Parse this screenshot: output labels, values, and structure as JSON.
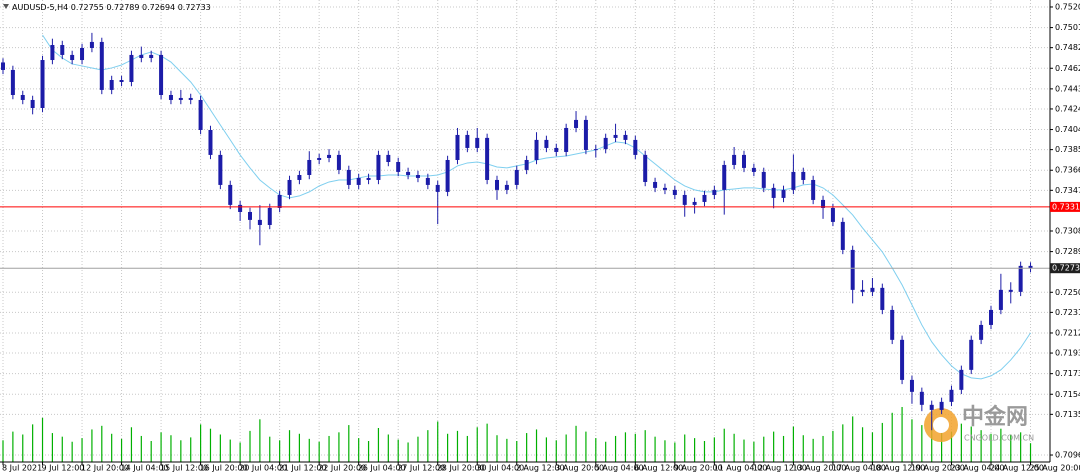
{
  "chart_data": {
    "type": "candlestick",
    "symbol": "AUDUSD-5,H4",
    "categories": [
      "8 Jul 2021",
      null,
      null,
      null,
      "9 Jul 12:00",
      null,
      null,
      null,
      "12 Jul 20:00",
      null,
      null,
      null,
      "14 Jul 04:00",
      null,
      null,
      null,
      "15 Jul 12:00",
      null,
      null,
      null,
      "16 Jul 20:00",
      null,
      null,
      null,
      "20 Jul 04:00",
      null,
      null,
      null,
      "21 Jul 12:00",
      null,
      null,
      null,
      "22 Jul 20:00",
      null,
      null,
      null,
      "26 Jul 04:00",
      null,
      null,
      null,
      "27 Jul 12:00",
      null,
      null,
      null,
      "28 Jul 20:00",
      null,
      null,
      null,
      "30 Jul 04:00",
      null,
      null,
      null,
      "2 Aug 12:00",
      null,
      null,
      null,
      "3 Aug 20:00",
      null,
      null,
      null,
      "5 Aug 04:00",
      null,
      null,
      null,
      "6 Aug 12:00",
      null,
      null,
      null,
      "9 Aug 20:00",
      null,
      null,
      null,
      "11 Aug 04:00",
      null,
      null,
      null,
      "12 Aug 12:00",
      null,
      null,
      null,
      "13 Aug 20:00",
      null,
      null,
      null,
      "17 Aug 04:00",
      null,
      null,
      null,
      "18 Aug 12:00",
      null,
      null,
      null,
      "19 Aug 20:00",
      null,
      null,
      null,
      "23 Aug 04:00",
      null,
      null,
      null,
      "24 Aug 12:00",
      null,
      null,
      null,
      "25 Aug 20:00"
    ],
    "open": [
      0.7468,
      0.74609,
      0.74372,
      0.74325,
      0.74249,
      0.74703,
      0.74845,
      0.74751,
      0.74703,
      0.74817,
      0.74874,
      0.7442,
      0.74514,
      0.74495,
      0.74751,
      0.74722,
      0.74751,
      0.74372,
      0.74325,
      0.74344,
      0.74325,
      0.74041,
      0.73805,
      0.73521,
      0.73332,
      0.73265,
      0.7319,
      0.73142,
      0.73303,
      0.73426,
      0.73568,
      0.73615,
      0.73757,
      0.73776,
      0.73805,
      0.73663,
      0.73521,
      0.73587,
      0.73568,
      0.73805,
      0.73738,
      0.73644,
      0.73615,
      0.73587,
      0.73521,
      0.73455,
      0.73757,
      0.73994,
      0.73871,
      0.73966,
      0.73568,
      0.73474,
      0.73521,
      0.73663,
      0.73757,
      0.73947,
      0.73871,
      0.73833,
      0.7406,
      0.74136,
      0.73852,
      0.7386,
      0.73966,
      0.73994,
      0.73947,
      0.73805,
      0.73549,
      0.73493,
      0.73474,
      0.73426,
      0.73332,
      0.7336,
      0.73426,
      0.73474,
      0.7371,
      0.73805,
      0.73682,
      0.73644,
      0.73493,
      0.73398,
      0.73474,
      0.73644,
      0.73568,
      0.73379,
      0.73303,
      0.73171,
      0.72906,
      0.72528,
      0.72509,
      0.72547,
      0.72338,
      0.72055,
      0.71676,
      0.71563,
      0.7144,
      0.71392,
      0.71468,
      0.71582,
      0.71771,
      0.72055,
      0.72196,
      0.72338,
      0.72528,
      0.72509,
      0.72755
    ],
    "high": [
      0.7472,
      0.74649,
      0.74412,
      0.74365,
      0.74743,
      0.74905,
      0.74885,
      0.74791,
      0.74857,
      0.7496,
      0.74914,
      0.74554,
      0.74554,
      0.74791,
      0.7483,
      0.74791,
      0.74791,
      0.74412,
      0.7442,
      0.74384,
      0.74365,
      0.74081,
      0.73845,
      0.73561,
      0.73372,
      0.73305,
      0.7333,
      0.73343,
      0.73466,
      0.73608,
      0.73655,
      0.7384,
      0.73816,
      0.7386,
      0.73845,
      0.73703,
      0.73627,
      0.73627,
      0.73845,
      0.73845,
      0.73778,
      0.73684,
      0.73655,
      0.73627,
      0.73561,
      0.73797,
      0.7406,
      0.74034,
      0.7406,
      0.74006,
      0.73608,
      0.73561,
      0.73703,
      0.73797,
      0.7402,
      0.73987,
      0.73911,
      0.741,
      0.7422,
      0.74176,
      0.739,
      0.74006,
      0.741,
      0.74034,
      0.73987,
      0.73845,
      0.73589,
      0.73533,
      0.73514,
      0.73466,
      0.734,
      0.73466,
      0.73514,
      0.7375,
      0.7388,
      0.73845,
      0.73722,
      0.73684,
      0.73533,
      0.73514,
      0.7381,
      0.73684,
      0.73608,
      0.73419,
      0.73343,
      0.73211,
      0.72946,
      0.7262,
      0.7264,
      0.72587,
      0.72378,
      0.72095,
      0.71716,
      0.71603,
      0.7148,
      0.71508,
      0.71622,
      0.71811,
      0.72095,
      0.72236,
      0.72378,
      0.7268,
      0.726,
      0.72795,
      0.72789
    ],
    "low": [
      0.74569,
      0.74332,
      0.74285,
      0.74189,
      0.74209,
      0.74663,
      0.74711,
      0.74663,
      0.74663,
      0.74777,
      0.7438,
      0.7438,
      0.74455,
      0.74455,
      0.74682,
      0.74682,
      0.74332,
      0.74285,
      0.74285,
      0.74285,
      0.74001,
      0.73765,
      0.73481,
      0.73292,
      0.7318,
      0.731,
      0.7295,
      0.73102,
      0.73263,
      0.73386,
      0.73528,
      0.73575,
      0.73717,
      0.73736,
      0.73623,
      0.73481,
      0.73481,
      0.73528,
      0.73528,
      0.73698,
      0.73604,
      0.73575,
      0.73547,
      0.73481,
      0.7315,
      0.73415,
      0.73717,
      0.73831,
      0.73831,
      0.73528,
      0.7338,
      0.73434,
      0.73481,
      0.73623,
      0.73717,
      0.73831,
      0.73793,
      0.73793,
      0.7402,
      0.73812,
      0.7378,
      0.7382,
      0.73926,
      0.73907,
      0.73765,
      0.73509,
      0.73453,
      0.73434,
      0.73386,
      0.7322,
      0.7325,
      0.7332,
      0.73386,
      0.7324,
      0.7367,
      0.73642,
      0.73604,
      0.73453,
      0.733,
      0.73358,
      0.73434,
      0.73528,
      0.73339,
      0.732,
      0.73131,
      0.72866,
      0.724,
      0.72469,
      0.72469,
      0.72298,
      0.72015,
      0.71636,
      0.7145,
      0.7138,
      0.712,
      0.71352,
      0.71428,
      0.71542,
      0.71731,
      0.72015,
      0.72156,
      0.72298,
      0.724,
      0.72469,
      0.72694
    ],
    "close": [
      0.74609,
      0.74372,
      0.74325,
      0.74249,
      0.74703,
      0.74845,
      0.74751,
      0.74703,
      0.74817,
      0.74874,
      0.7442,
      0.74514,
      0.74495,
      0.74751,
      0.74722,
      0.74751,
      0.74372,
      0.74325,
      0.74344,
      0.74325,
      0.74041,
      0.73805,
      0.73521,
      0.73332,
      0.73265,
      0.7319,
      0.73142,
      0.73303,
      0.73426,
      0.73568,
      0.73615,
      0.73757,
      0.73776,
      0.73805,
      0.73663,
      0.73521,
      0.73587,
      0.73568,
      0.73805,
      0.73738,
      0.73644,
      0.73615,
      0.73587,
      0.73521,
      0.73455,
      0.73757,
      0.73994,
      0.73871,
      0.73966,
      0.73568,
      0.73474,
      0.73521,
      0.73663,
      0.73757,
      0.73947,
      0.73871,
      0.73833,
      0.7406,
      0.74136,
      0.73852,
      0.7386,
      0.73966,
      0.73994,
      0.73947,
      0.73805,
      0.73549,
      0.73493,
      0.73474,
      0.73426,
      0.73332,
      0.7336,
      0.73426,
      0.73474,
      0.7371,
      0.73805,
      0.73682,
      0.73644,
      0.73493,
      0.73398,
      0.73474,
      0.73644,
      0.73568,
      0.73379,
      0.73303,
      0.73171,
      0.72906,
      0.72528,
      0.72509,
      0.72547,
      0.72338,
      0.72055,
      0.71676,
      0.71563,
      0.7144,
      0.71392,
      0.71468,
      0.71582,
      0.71771,
      0.72055,
      0.72196,
      0.72338,
      0.72528,
      0.72509,
      0.72755,
      0.72733
    ],
    "candle_color": "#1c1ca8",
    "ma": {
      "color": "#7fcfef",
      "values": [
        null,
        null,
        null,
        null,
        0.7494,
        0.74798,
        0.74722,
        0.74666,
        0.74647,
        0.74628,
        0.74609,
        0.74628,
        0.74656,
        0.74703,
        0.74751,
        0.74779,
        0.74741,
        0.74684,
        0.7459,
        0.74495,
        0.74372,
        0.7423,
        0.74088,
        0.73947,
        0.73805,
        0.73682,
        0.73568,
        0.73493,
        0.73426,
        0.73398,
        0.73417,
        0.73455,
        0.73511,
        0.73549,
        0.73568,
        0.73568,
        0.73587,
        0.73606,
        0.73606,
        0.73615,
        0.73615,
        0.73606,
        0.73606,
        0.73606,
        0.73615,
        0.73644,
        0.73701,
        0.73729,
        0.73738,
        0.7372,
        0.73691,
        0.73682,
        0.73701,
        0.7372,
        0.73757,
        0.73776,
        0.73786,
        0.73795,
        0.73814,
        0.73833,
        0.73852,
        0.7389,
        0.73928,
        0.73918,
        0.73871,
        0.73795,
        0.7372,
        0.73644,
        0.73568,
        0.73511,
        0.73474,
        0.73455,
        0.73455,
        0.73474,
        0.73483,
        0.73493,
        0.73493,
        0.73483,
        0.73474,
        0.73474,
        0.73493,
        0.73521,
        0.7353,
        0.73493,
        0.73426,
        0.73332,
        0.73237,
        0.73114,
        0.73001,
        0.72887,
        0.72736,
        0.72575,
        0.72386,
        0.72196,
        0.72036,
        0.71913,
        0.71809,
        0.71733,
        0.71695,
        0.71686,
        0.71714,
        0.71771,
        0.71865,
        0.71979,
        0.72121
      ]
    },
    "volume": {
      "color": "#00b000",
      "values": [
        3000,
        4200,
        3800,
        5200,
        6100,
        4000,
        3500,
        2800,
        3300,
        4500,
        5000,
        3900,
        3200,
        4800,
        3600,
        2900,
        4100,
        3700,
        3000,
        3400,
        5200,
        4600,
        3800,
        3100,
        2700,
        4300,
        5900,
        3500,
        3000,
        4400,
        3900,
        3200,
        2800,
        3600,
        4100,
        5100,
        3300,
        2900,
        4700,
        3800,
        3100,
        2700,
        3500,
        4400,
        5600,
        3900,
        4300,
        3600,
        4800,
        5300,
        3700,
        3200,
        2900,
        4000,
        4500,
        3400,
        3000,
        3800,
        5000,
        4200,
        3300,
        2800,
        3600,
        4100,
        3900,
        4400,
        3500,
        3000,
        2700,
        3800,
        3300,
        2900,
        3400,
        4600,
        3900,
        3100,
        2800,
        3500,
        4200,
        3600,
        4900,
        3700,
        3200,
        3600,
        4300,
        5200,
        6300,
        4800,
        4100,
        5400,
        6800,
        7600,
        5900,
        5100,
        6200,
        4700,
        4200,
        5300,
        4900,
        4400,
        3900,
        4600,
        3800,
        4100,
        2600
      ]
    },
    "hline": {
      "value": 0.73313,
      "color": "#ff0000"
    },
    "ylim": [
      0.70899,
      0.75271
    ],
    "yticks": [
      0.75205,
      {
        "value": 0.7501,
        "label": "0.75010"
      },
      {
        "value": 0.7482,
        "label": "0.74820"
      },
      0.74625,
      {
        "value": 0.7443,
        "label": "0.74430"
      },
      {
        "value": 0.7424,
        "label": "0.74240"
      },
      0.74045,
      0.73855,
      {
        "value": 0.7366,
        "label": "0.73660"
      },
      {
        "value": 0.7347,
        "label": "0.73470"
      },
      0.73085,
      {
        "value": 0.7289,
        "label": "0.72890"
      },
      0.72505,
      0.72315,
      {
        "value": 0.7212,
        "label": "0.72120"
      },
      {
        "value": 0.7193,
        "label": "0.71930"
      },
      0.71735,
      {
        "value": 0.7154,
        "label": "0.71540"
      },
      {
        "value": 0.7135,
        "label": "0.71350"
      },
      0.70965
    ],
    "grid": true,
    "watermark": {
      "title": "中金网",
      "subtitle": "CNGOLD.COM.CN"
    }
  }
}
